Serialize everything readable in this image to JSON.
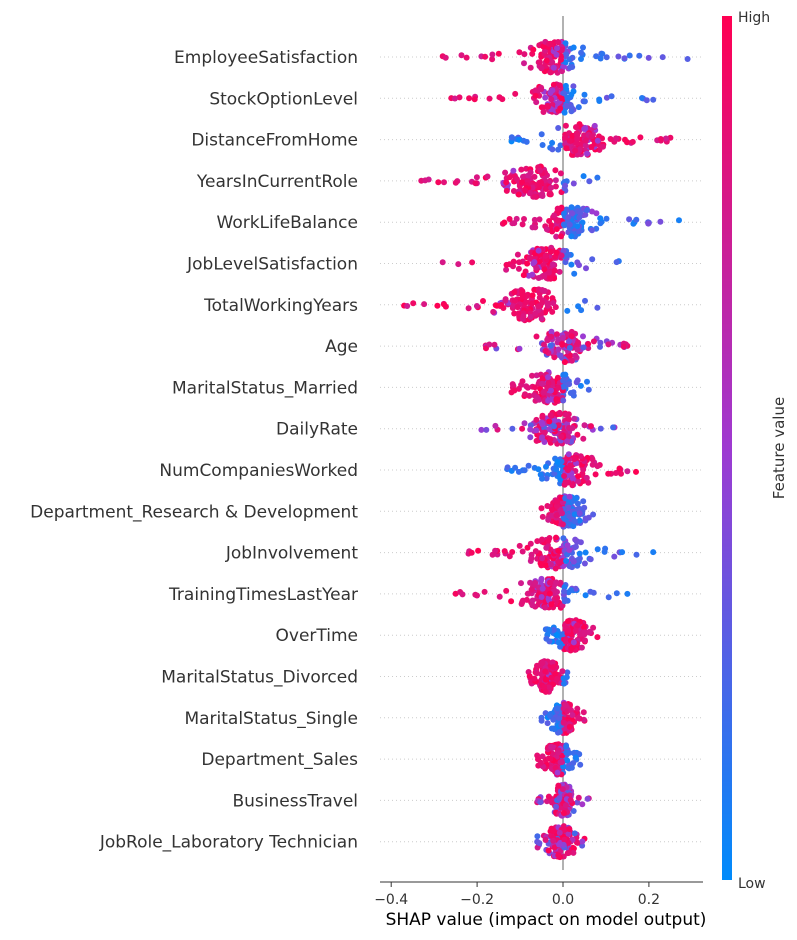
{
  "chart_data": {
    "type": "scatter",
    "subtype": "shap-beeswarm",
    "xlabel": "SHAP value (impact on model output)",
    "xlim": [
      -0.41,
      0.33
    ],
    "xticks": [
      -0.4,
      -0.2,
      0.0,
      0.2
    ],
    "xtick_labels": [
      "−0.4",
      "−0.2",
      "0.0",
      "0.2"
    ],
    "colorbar": {
      "label": "Feature value",
      "high_label": "High",
      "low_label": "Low",
      "high_color": "#ff0052",
      "low_color": "#008bfb"
    },
    "features": [
      {
        "name": "EmployeeSatisfaction",
        "min": -0.28,
        "max": 0.29,
        "core": [
          -0.12,
          0.08
        ],
        "high_side": "neg"
      },
      {
        "name": "StockOptionLevel",
        "min": -0.26,
        "max": 0.21,
        "core": [
          -0.1,
          0.07
        ],
        "high_side": "neg"
      },
      {
        "name": "DistanceFromHome",
        "min": -0.12,
        "max": 0.25,
        "core": [
          -0.06,
          0.14
        ],
        "high_side": "pos"
      },
      {
        "name": "YearsInCurrentRole",
        "min": -0.33,
        "max": 0.08,
        "core": [
          -0.18,
          0.05
        ],
        "high_side": "neg"
      },
      {
        "name": "WorkLifeBalance",
        "min": -0.14,
        "max": 0.27,
        "core": [
          -0.09,
          0.12
        ],
        "high_side": "neg"
      },
      {
        "name": "JobLevelSatisfaction",
        "min": -0.28,
        "max": 0.13,
        "core": [
          -0.15,
          0.07
        ],
        "high_side": "neg"
      },
      {
        "name": "TotalWorkingYears",
        "min": -0.37,
        "max": 0.08,
        "core": [
          -0.2,
          0.05
        ],
        "high_side": "neg"
      },
      {
        "name": "Age",
        "min": -0.18,
        "max": 0.15,
        "core": [
          -0.1,
          0.1
        ],
        "high_side": "mixed"
      },
      {
        "name": "MaritalStatus_Married",
        "min": -0.12,
        "max": 0.06,
        "core": [
          -0.12,
          0.06
        ],
        "high_side": "neg"
      },
      {
        "name": "DailyRate",
        "min": -0.19,
        "max": 0.12,
        "core": [
          -0.12,
          0.09
        ],
        "high_side": "mixed"
      },
      {
        "name": "NumCompaniesWorked",
        "min": -0.13,
        "max": 0.17,
        "core": [
          -0.08,
          0.12
        ],
        "high_side": "pos"
      },
      {
        "name": "Department_Research & Development",
        "min": -0.05,
        "max": 0.07,
        "core": [
          -0.05,
          0.07
        ],
        "high_side": "neg"
      },
      {
        "name": "JobInvolvement",
        "min": -0.22,
        "max": 0.21,
        "core": [
          -0.12,
          0.1
        ],
        "high_side": "neg"
      },
      {
        "name": "TrainingTimesLastYear",
        "min": -0.25,
        "max": 0.15,
        "core": [
          -0.15,
          0.08
        ],
        "high_side": "neg"
      },
      {
        "name": "OverTime",
        "min": -0.04,
        "max": 0.08,
        "core": [
          -0.04,
          0.08
        ],
        "high_side": "pos"
      },
      {
        "name": "MaritalStatus_Divorced",
        "min": -0.08,
        "max": 0.01,
        "core": [
          -0.08,
          0.01
        ],
        "high_side": "neg"
      },
      {
        "name": "MaritalStatus_Single",
        "min": -0.05,
        "max": 0.05,
        "core": [
          -0.05,
          0.05
        ],
        "high_side": "pos"
      },
      {
        "name": "Department_Sales",
        "min": -0.06,
        "max": 0.04,
        "core": [
          -0.06,
          0.04
        ],
        "high_side": "neg"
      },
      {
        "name": "BusinessTravel",
        "min": -0.06,
        "max": 0.06,
        "core": [
          -0.04,
          0.04
        ],
        "high_side": "mixed"
      },
      {
        "name": "JobRole_Laboratory Technician",
        "min": -0.06,
        "max": 0.05,
        "core": [
          -0.06,
          0.05
        ],
        "high_side": "mixed"
      }
    ]
  }
}
